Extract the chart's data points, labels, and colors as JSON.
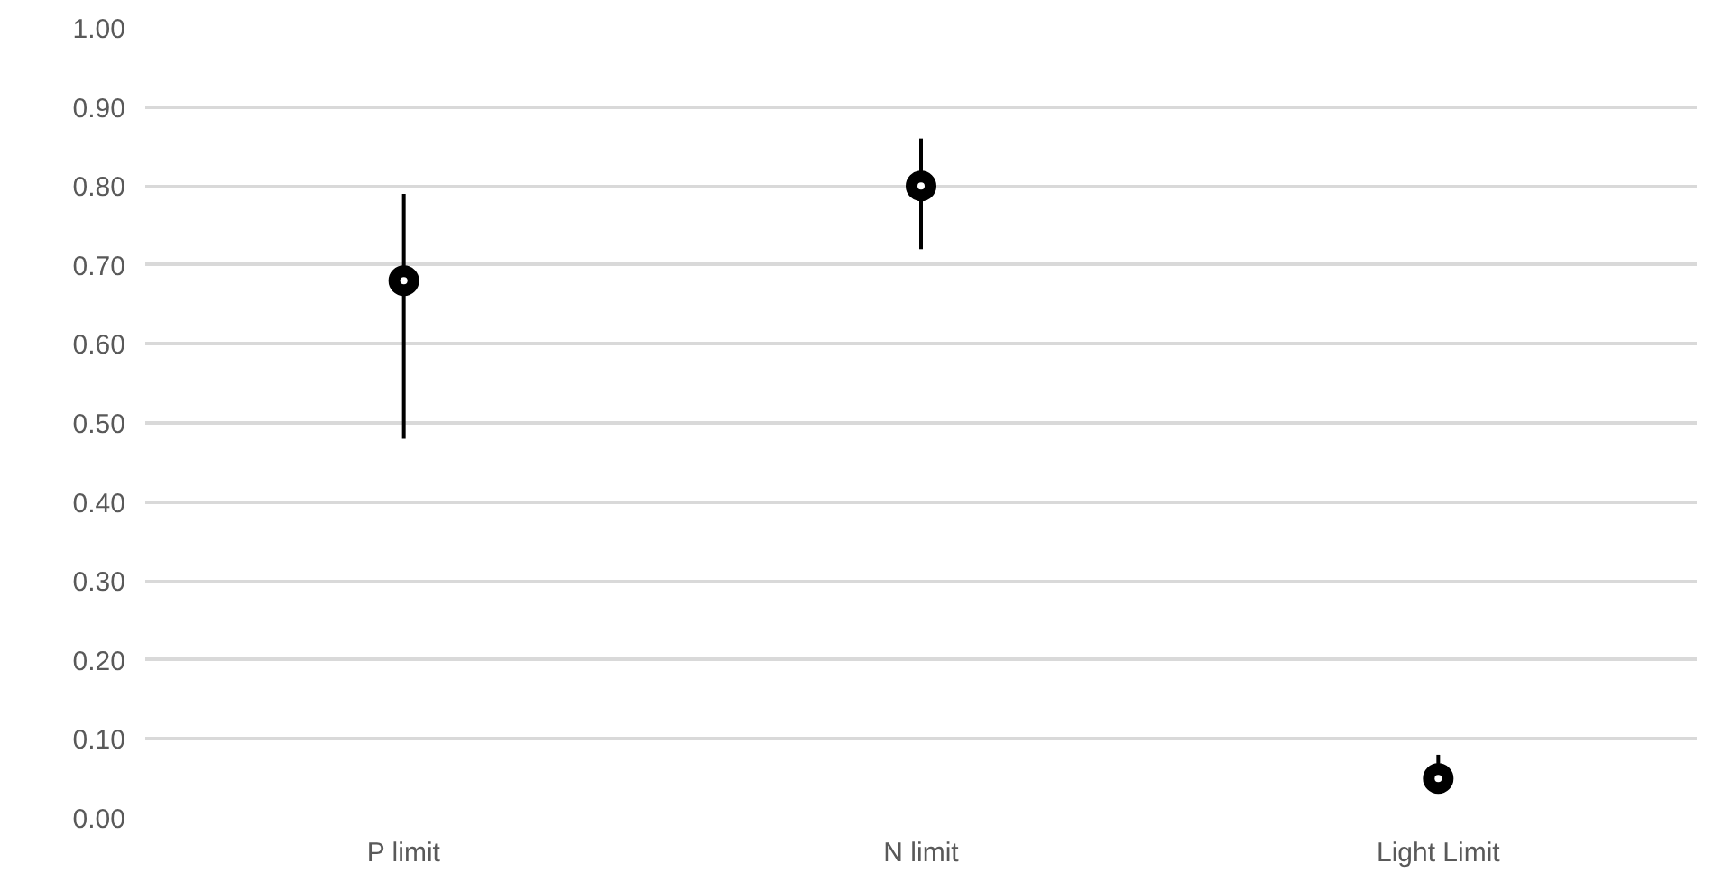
{
  "chart_data": {
    "type": "scatter",
    "categories": [
      "P limit",
      "N limit",
      "Light Limit"
    ],
    "values": [
      0.68,
      0.8,
      0.05
    ],
    "errors": [
      [
        0.48,
        0.79
      ],
      [
        0.72,
        0.86
      ],
      [
        0.04,
        0.08
      ]
    ],
    "color": "#000000",
    "marker": "circle",
    "ylim": [
      0,
      1
    ],
    "yticks": [
      {
        "value": 0,
        "label": "0.00"
      },
      {
        "value": 0.1,
        "label": "0.10"
      },
      {
        "value": 0.2,
        "label": "0.20"
      },
      {
        "value": 0.3,
        "label": "0.30"
      },
      {
        "value": 0.4,
        "label": "0.40"
      },
      {
        "value": 0.5,
        "label": "0.50"
      },
      {
        "value": 0.6,
        "label": "0.60"
      },
      {
        "value": 0.7,
        "label": "0.70"
      },
      {
        "value": 0.8,
        "label": "0.80"
      },
      {
        "value": 0.9,
        "label": "0.90"
      },
      {
        "value": 1,
        "label": "1.00"
      }
    ],
    "grid": "y"
  }
}
